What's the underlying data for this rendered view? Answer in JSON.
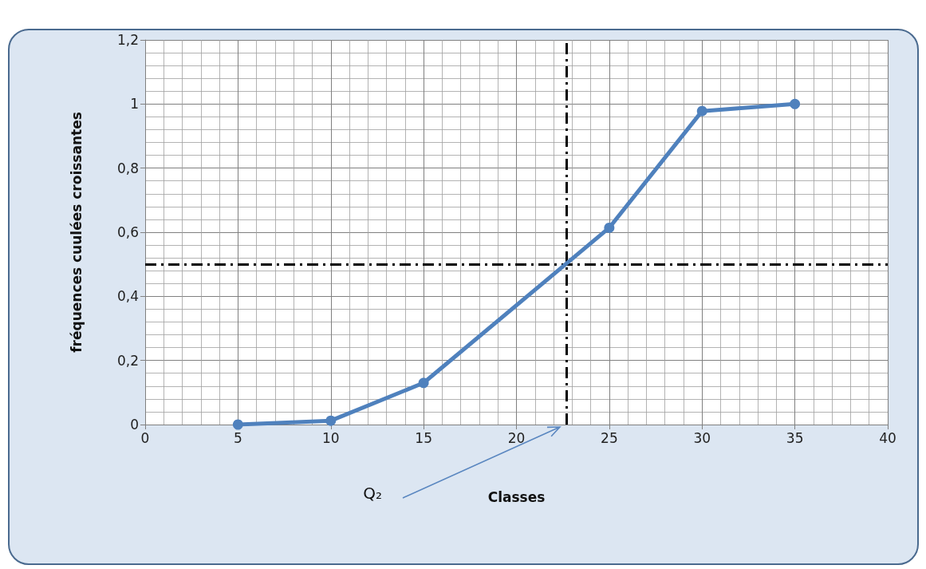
{
  "chart_data": {
    "type": "line",
    "xlabel": "Classes",
    "ylabel": "fréquences cuulées croissantes",
    "x": [
      5,
      10,
      15,
      25,
      30,
      35
    ],
    "series": [
      {
        "color": "#4f81bd",
        "values": [
          0,
          0.012,
          0.13,
          0.614,
          0.978,
          1
        ]
      }
    ],
    "xlim": [
      0,
      40
    ],
    "xticks": [
      0,
      5,
      10,
      15,
      20,
      25,
      30,
      35,
      40
    ],
    "ylim": [
      0,
      1.2
    ],
    "yticks": [
      0,
      {
        "value": 0.2,
        "label": "0,2"
      },
      {
        "value": 0.4,
        "label": "0,4"
      },
      {
        "value": 0.6,
        "label": "0,6"
      },
      {
        "value": 0.8,
        "label": "0,8"
      },
      1,
      {
        "value": 1.2,
        "label": "1,2"
      }
    ],
    "grid": true,
    "marker": "circle",
    "line_style": "solid",
    "ref_lines": [
      {
        "axis": "x",
        "value": 22.7,
        "color": "#000000",
        "line_style": "dashed"
      },
      {
        "axis": "y",
        "value": 0.5,
        "color": "#000000",
        "line_style": "dashed"
      }
    ],
    "annotations": [
      "Q₂"
    ]
  }
}
